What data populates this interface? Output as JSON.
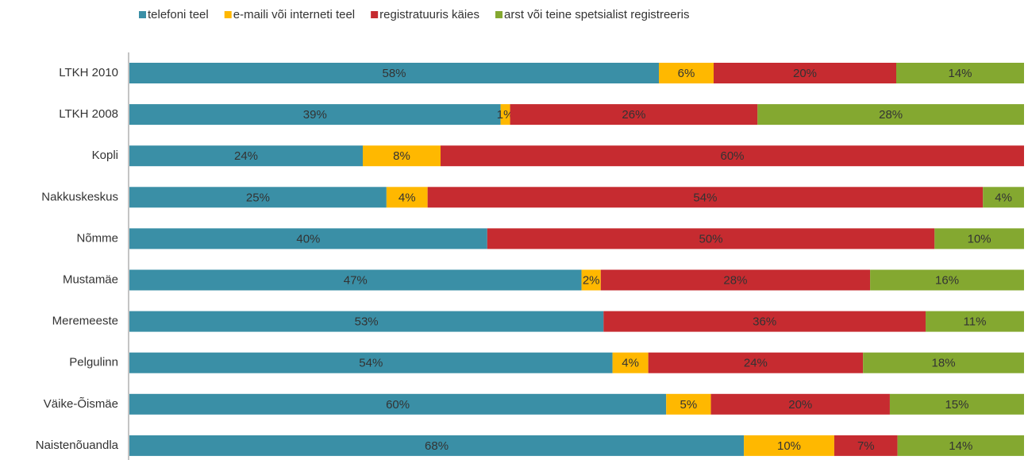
{
  "chart_data": {
    "type": "bar",
    "orientation": "horizontal",
    "stacked": "percent",
    "categories": [
      "LTKH 2010",
      "LTKH 2008",
      "Kopli",
      "Nakkuskeskus",
      "Nõmme",
      "Mustamäe",
      "Meremeeste",
      "Pelgulinn",
      "Väike-Õismäe",
      "Naistenõuandla"
    ],
    "series": [
      {
        "name": "telefoni teel",
        "color": "#3a8fa6",
        "values": [
          58,
          39,
          24,
          25,
          40,
          47,
          53,
          54,
          60,
          68
        ],
        "value_labels": [
          "58%",
          "39%",
          "24%",
          "25%",
          "40%",
          "47%",
          "53%",
          "54%",
          "60%",
          "68%"
        ]
      },
      {
        "name": "e-maili või interneti teel",
        "color": "#ffb800",
        "values": [
          6,
          1,
          8,
          4,
          null,
          2,
          null,
          4,
          5,
          10
        ],
        "value_labels": [
          "6%",
          "1%",
          "8%",
          "4%",
          null,
          "2%",
          null,
          "4%",
          "5%",
          "10%"
        ]
      },
      {
        "name": "registratuuris käies",
        "color": "#c62b30",
        "values": [
          20,
          26,
          60,
          54,
          50,
          28,
          36,
          24,
          20,
          7
        ],
        "value_labels": [
          "20%",
          "26%",
          "60%",
          "54%",
          "50%",
          "28%",
          "36%",
          "24%",
          "20%",
          "7%"
        ]
      },
      {
        "name": "arst või teine spetsialist registreeris",
        "color": "#84a830",
        "values": [
          14,
          28,
          null,
          4,
          10,
          16,
          11,
          18,
          15,
          14
        ],
        "value_labels": [
          "14%",
          "28%",
          null,
          "4%",
          "10%",
          "16%",
          "11%",
          "18%",
          "15%",
          "14%"
        ]
      }
    ],
    "legend": "top"
  }
}
